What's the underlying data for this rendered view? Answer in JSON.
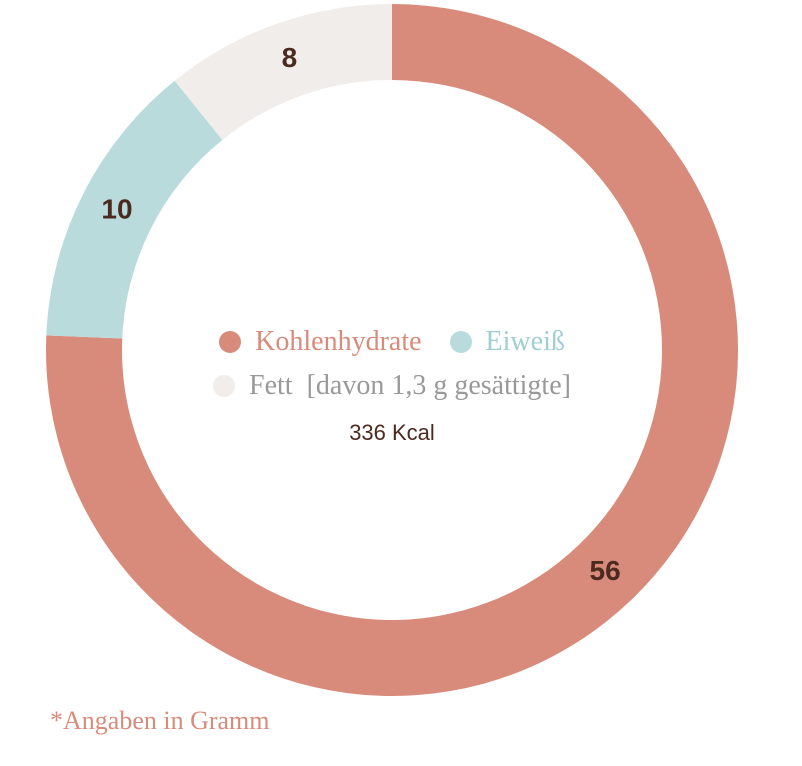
{
  "chart_data": {
    "type": "pie",
    "categories": [
      "Kohlenhydrate",
      "Eiweiß",
      "Fett  [davon 1,3 g gesättigte]"
    ],
    "values": [
      56,
      10,
      8
    ],
    "colors": [
      "#d98b7b",
      "#b9dbdc",
      "#f1edeb"
    ],
    "center_label": "336 Kcal",
    "footnote": "*Angaben in Gramm"
  }
}
